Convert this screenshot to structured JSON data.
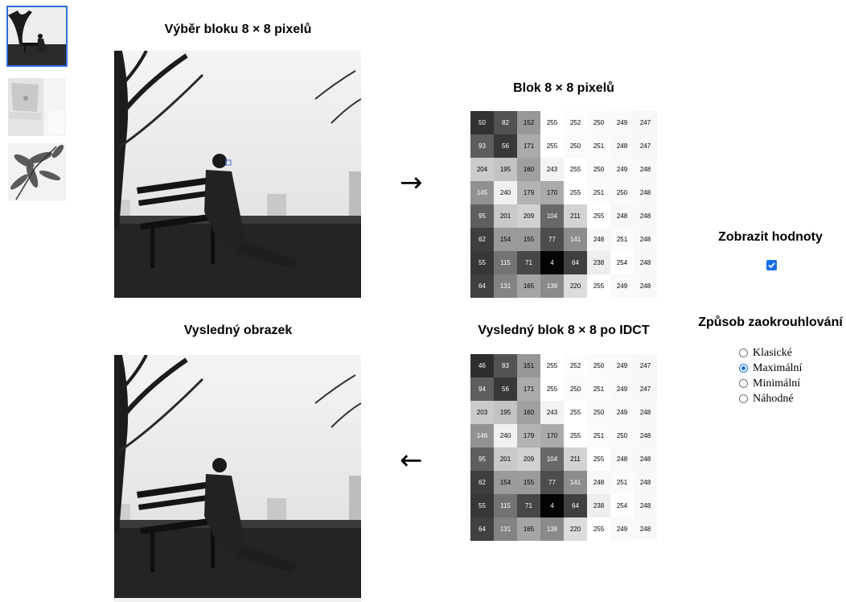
{
  "thumbnails": [
    {
      "name": "bench-photo-thumbnail",
      "selected": true
    },
    {
      "name": "laptop-photo-thumbnail",
      "selected": false
    },
    {
      "name": "leaves-photo-thumbnail",
      "selected": false
    }
  ],
  "headings": {
    "select_block": "Výběr bloku 8 × 8 pixelů",
    "block": "Blok 8 × 8 pixelů",
    "result_image": "Vysledný obrazek",
    "result_block": "Vysledný blok 8 × 8 po IDCT"
  },
  "arrows": {
    "forward": "→",
    "back": "←"
  },
  "block": [
    [
      50,
      82,
      152,
      255,
      252,
      250,
      249,
      247
    ],
    [
      93,
      56,
      171,
      255,
      250,
      251,
      248,
      247
    ],
    [
      204,
      195,
      160,
      243,
      255,
      250,
      249,
      248
    ],
    [
      145,
      240,
      179,
      170,
      255,
      251,
      250,
      248
    ],
    [
      95,
      201,
      209,
      104,
      211,
      255,
      248,
      248
    ],
    [
      62,
      154,
      155,
      77,
      141,
      248,
      251,
      248
    ],
    [
      55,
      115,
      71,
      4,
      64,
      238,
      254,
      248
    ],
    [
      64,
      131,
      165,
      138,
      220,
      255,
      249,
      248
    ]
  ],
  "result_block": [
    [
      46,
      83,
      151,
      255,
      252,
      250,
      249,
      247
    ],
    [
      94,
      56,
      171,
      255,
      250,
      251,
      249,
      247
    ],
    [
      203,
      195,
      160,
      243,
      255,
      250,
      249,
      248
    ],
    [
      146,
      240,
      179,
      170,
      255,
      251,
      250,
      248
    ],
    [
      95,
      201,
      209,
      104,
      211,
      255,
      248,
      248
    ],
    [
      62,
      154,
      155,
      77,
      141,
      248,
      251,
      248
    ],
    [
      55,
      115,
      71,
      4,
      64,
      238,
      254,
      248
    ],
    [
      64,
      131,
      165,
      138,
      220,
      255,
      249,
      248
    ]
  ],
  "controls": {
    "show_values_label": "Zobrazit hodnoty",
    "show_values_checked": true,
    "rounding_label": "Způsob zaokrouhlování",
    "rounding_options": [
      "Klasické",
      "Maximální",
      "Minimální",
      "Náhodné"
    ],
    "rounding_selected": "Maximální"
  },
  "colors": {
    "accent": "#1a6fe8",
    "selection_outline": "#2f6fe0"
  }
}
